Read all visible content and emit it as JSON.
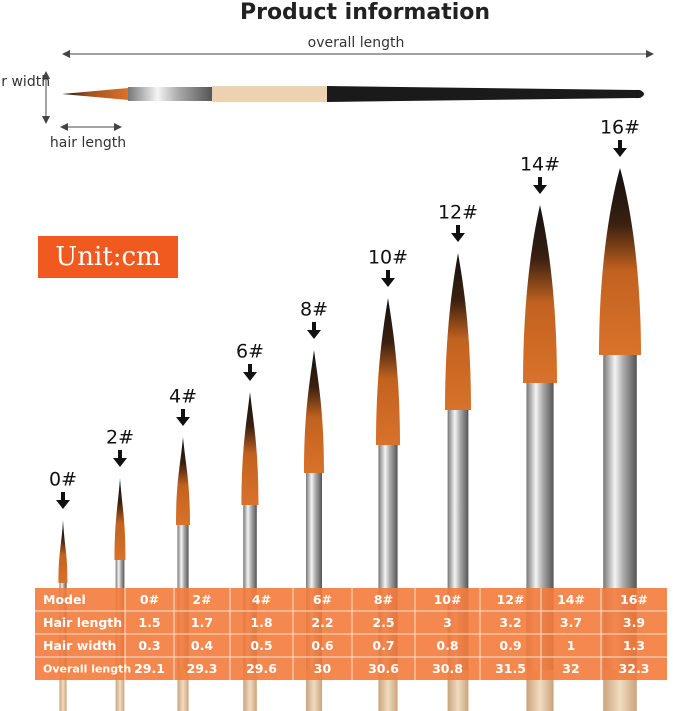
{
  "header": {
    "title": "Product information"
  },
  "diagram": {
    "overall_length": "overall length",
    "hair_width": "hair width",
    "hair_length": "hair length",
    "unit": "Unit:cm"
  },
  "brush_labels": [
    "0#",
    "2#",
    "4#",
    "6#",
    "8#",
    "10#",
    "12#",
    "14#",
    "16#"
  ],
  "table": {
    "rows": [
      [
        "Model",
        "0#",
        "2#",
        "4#",
        "6#",
        "8#",
        "10#",
        "12#",
        "14#",
        "16#"
      ],
      [
        "Hair length",
        1.5,
        1.7,
        1.8,
        2.2,
        2.5,
        3,
        3.2,
        3.7,
        3.9
      ],
      [
        "Hair width",
        0.3,
        0.4,
        0.5,
        0.6,
        0.7,
        0.8,
        0.9,
        1,
        1.3
      ],
      [
        "Overall length",
        29.1,
        29.3,
        29.6,
        30,
        30.6,
        30.8,
        31.5,
        32,
        32.3
      ]
    ]
  }
}
